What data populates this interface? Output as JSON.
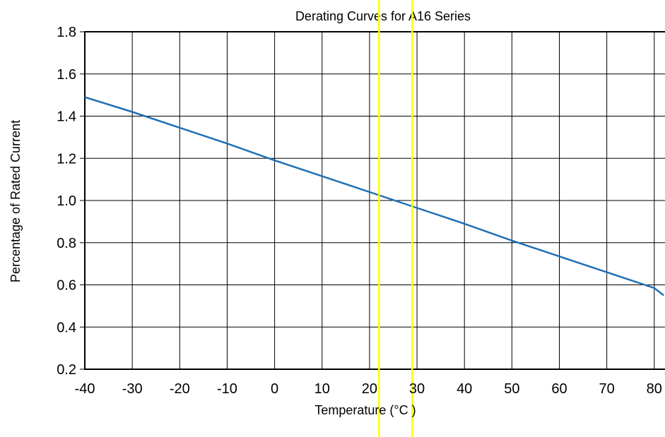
{
  "chart_data": {
    "type": "line",
    "title": "Derating Curves for A16 Series",
    "xlabel": "Temperature (°C )",
    "ylabel": "Percentage of Rated Current",
    "xlim": [
      -40,
      82
    ],
    "ylim": [
      0.2,
      1.8
    ],
    "x_ticks": [
      -40,
      -30,
      -20,
      -10,
      0,
      10,
      20,
      30,
      40,
      50,
      60,
      70,
      80
    ],
    "x_tick_labels": [
      "-40",
      "-30",
      "-20",
      "-10",
      "0",
      "10",
      "20",
      "30",
      "40",
      "50",
      "60",
      "70",
      "80"
    ],
    "y_ticks": [
      0.2,
      0.4,
      0.6,
      0.8,
      1.0,
      1.2,
      1.4,
      1.6,
      1.8
    ],
    "y_tick_labels": [
      "0.2",
      "0.4",
      "0.6",
      "0.8",
      "1.0",
      "1.2",
      "1.4",
      "1.6",
      "1.8"
    ],
    "grid": true,
    "series": [
      {
        "color": "#1f6fb5",
        "x": [
          -40,
          -30,
          -20,
          -10,
          0,
          10,
          20,
          30,
          40,
          50,
          60,
          70,
          80,
          82
        ],
        "y": [
          1.49,
          1.42,
          1.345,
          1.27,
          1.19,
          1.115,
          1.04,
          0.965,
          0.89,
          0.81,
          0.735,
          0.66,
          0.585,
          0.55
        ]
      }
    ],
    "vertical_markers": [
      {
        "x": 22,
        "color": "#ffff00"
      },
      {
        "x": 29,
        "color": "#ffff00"
      }
    ]
  }
}
